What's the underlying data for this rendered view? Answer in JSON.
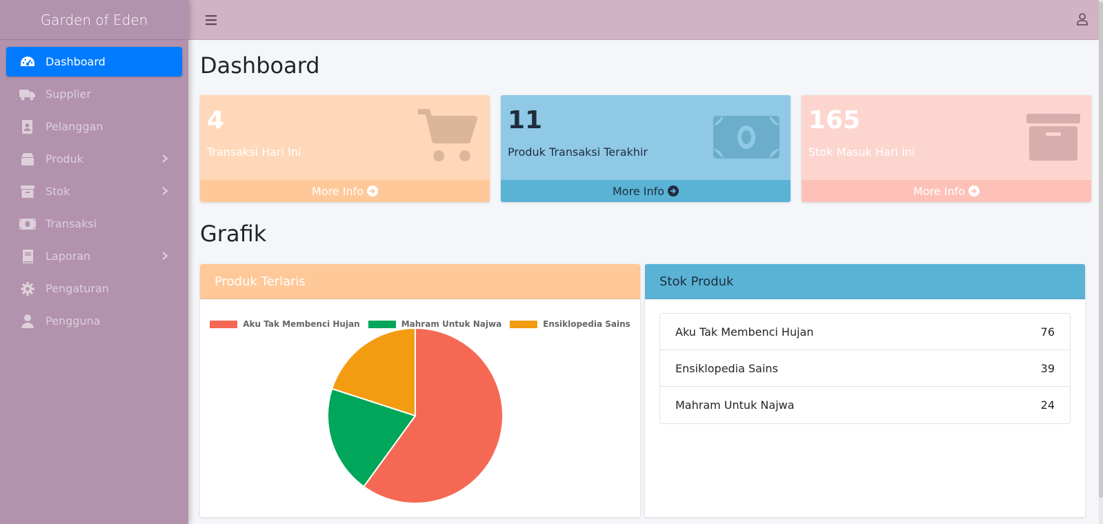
{
  "app": {
    "title": "Garden of Eden"
  },
  "sidebar": {
    "items": [
      {
        "label": "Dashboard",
        "icon": "tachometer-icon",
        "active": true,
        "has_submenu": false
      },
      {
        "label": "Supplier",
        "icon": "truck-icon",
        "active": false,
        "has_submenu": false
      },
      {
        "label": "Pelanggan",
        "icon": "address-book-icon",
        "active": false,
        "has_submenu": false
      },
      {
        "label": "Produk",
        "icon": "box-icon",
        "active": false,
        "has_submenu": true
      },
      {
        "label": "Stok",
        "icon": "archive-icon",
        "active": false,
        "has_submenu": true
      },
      {
        "label": "Transaksi",
        "icon": "money-bill-icon",
        "active": false,
        "has_submenu": false
      },
      {
        "label": "Laporan",
        "icon": "book-icon",
        "active": false,
        "has_submenu": true
      },
      {
        "label": "Pengaturan",
        "icon": "gear-icon",
        "active": false,
        "has_submenu": false
      },
      {
        "label": "Pengguna",
        "icon": "user-icon",
        "active": false,
        "has_submenu": false
      }
    ]
  },
  "page": {
    "title": "Dashboard",
    "grafik_title": "Grafik"
  },
  "info_boxes": [
    {
      "value": "4",
      "label": "Transaksi Hari Ini",
      "footer": "More Info",
      "icon": "shopping-cart-icon",
      "bg": "#ffd8b9",
      "footer_bg": "#ffc899",
      "text_color": "#ffffff"
    },
    {
      "value": "11",
      "label": "Produk Transaksi Terakhir",
      "footer": "More Info",
      "icon": "money-bill-icon",
      "bg": "#8fc9e6",
      "footer_bg": "#5ab2d5",
      "text_color": "#1f2d3d"
    },
    {
      "value": "165",
      "label": "Stok Masuk Hari Ini",
      "footer": "More Info",
      "icon": "archive-icon",
      "bg": "#fdd5cf",
      "footer_bg": "#fdc1b8",
      "text_color": "#ffffff"
    }
  ],
  "produk_terlaris": {
    "title": "Produk Terlaris",
    "header_bg": "#ffc899"
  },
  "chart_data": {
    "type": "pie",
    "categories": [
      "Aku Tak Membenci Hujan",
      "Mahram Untuk Najwa",
      "Ensiklopedia Sains"
    ],
    "values": [
      60,
      20,
      20
    ],
    "colors": [
      "#f56954",
      "#00a65a",
      "#f39c12"
    ],
    "legend": "top"
  },
  "stok_produk": {
    "title": "Stok Produk",
    "header_bg": "#5ab2d5",
    "items": [
      {
        "name": "Aku Tak Membenci Hujan",
        "qty": "76"
      },
      {
        "name": "Ensiklopedia Sains",
        "qty": "39"
      },
      {
        "name": "Mahram Untuk Najwa",
        "qty": "24"
      }
    ]
  }
}
